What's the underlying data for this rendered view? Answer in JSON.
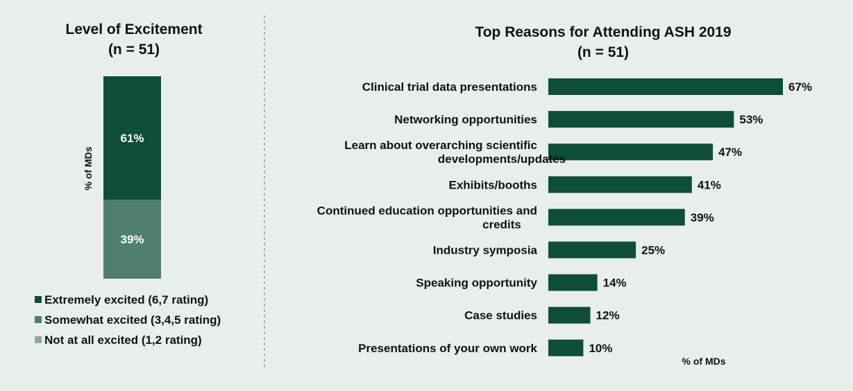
{
  "chart_data": [
    {
      "type": "bar",
      "orientation": "stacked-vertical",
      "title": "Level of Excitement",
      "subtitle": "(n = 51)",
      "ylabel": "% of MDs",
      "categories": [
        ""
      ],
      "series": [
        {
          "name": "Extremely excited (6,7 rating)",
          "values": [
            61
          ],
          "label": "61%",
          "color": "#0e4d3c"
        },
        {
          "name": "Somewhat excited (3,4,5 rating)",
          "values": [
            39
          ],
          "label": "39%",
          "color": "#4e7f71"
        },
        {
          "name": "Not at all excited (1,2 rating)",
          "values": [
            0
          ],
          "label": "",
          "color": "#8aa89f"
        }
      ],
      "ylim": [
        0,
        100
      ],
      "legend": "bottom"
    },
    {
      "type": "bar",
      "orientation": "horizontal",
      "title": "Top Reasons for Attending ASH 2019",
      "subtitle": "(n = 51)",
      "xlabel": "% of MDs",
      "color": "#0e4d3c",
      "categories": [
        [
          "Clinical trial data presentations"
        ],
        [
          "Networking opportunities"
        ],
        [
          "Learn about overarching scientific",
          "developments/updates"
        ],
        [
          "Exhibits/booths"
        ],
        [
          "Continued education opportunities and",
          "credits"
        ],
        [
          "Industry symposia"
        ],
        [
          "Speaking opportunity"
        ],
        [
          "Case studies"
        ],
        [
          "Presentations of your own work"
        ]
      ],
      "values": [
        67,
        53,
        47,
        41,
        39,
        25,
        14,
        12,
        10
      ],
      "labels": [
        "67%",
        "53%",
        "47%",
        "41%",
        "39%",
        "25%",
        "14%",
        "12%",
        "10%"
      ],
      "xlim": [
        0,
        100
      ]
    }
  ]
}
